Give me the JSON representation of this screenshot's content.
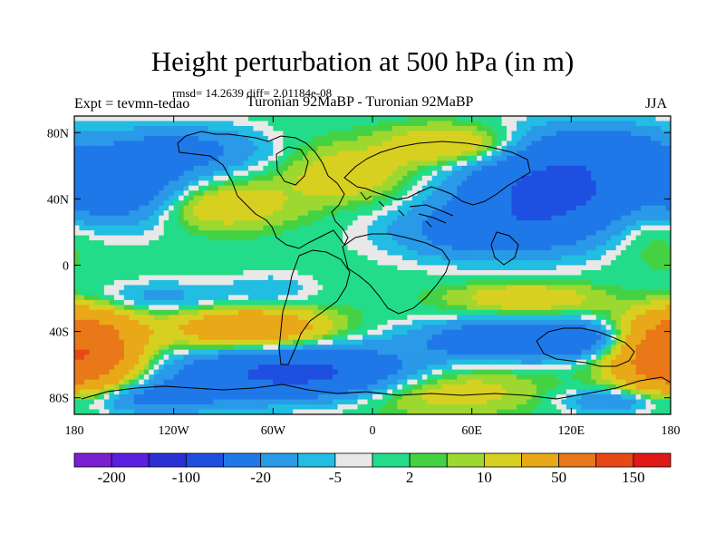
{
  "chart_data": {
    "type": "heatmap",
    "title": "Height perturbation at 500 hPa (in m)",
    "stats_text": "rmsd= 14.2639 diff= 2.01184e-08",
    "left_label": "Expt = tevmn-tedao",
    "center_label": "Turonian  92MaBP - Turonian  92MaBP",
    "season_label": "JJA",
    "x_range": [
      -180,
      180
    ],
    "y_range": [
      -90,
      90
    ],
    "x_ticks": [
      {
        "value": -180,
        "label": "180"
      },
      {
        "value": -120,
        "label": "120W"
      },
      {
        "value": -60,
        "label": "60W"
      },
      {
        "value": 0,
        "label": "0"
      },
      {
        "value": 60,
        "label": "60E"
      },
      {
        "value": 120,
        "label": "120E"
      },
      {
        "value": 180,
        "label": "180"
      }
    ],
    "y_ticks": [
      {
        "value": 80,
        "label": "80N"
      },
      {
        "value": 40,
        "label": "40N"
      },
      {
        "value": 0,
        "label": "0"
      },
      {
        "value": -40,
        "label": "40S"
      },
      {
        "value": -80,
        "label": "80S"
      }
    ],
    "colorbar": {
      "colors": [
        "#7a1fd2",
        "#5a1fe0",
        "#2b2fd6",
        "#1f4fe0",
        "#1f78e8",
        "#2a99e8",
        "#22bde2",
        "#e8e8e8",
        "#22dc8a",
        "#44d244",
        "#9dd830",
        "#d8d020",
        "#e8a818",
        "#e87818",
        "#e84818",
        "#e01818"
      ],
      "labels": [
        {
          "after_box": 1,
          "text": "-200"
        },
        {
          "after_box": 3,
          "text": "-100"
        },
        {
          "after_box": 5,
          "text": "-20"
        },
        {
          "after_box": 7,
          "text": "-5"
        },
        {
          "after_box": 9,
          "text": "2"
        },
        {
          "after_box": 11,
          "text": "10"
        },
        {
          "after_box": 13,
          "text": "50"
        },
        {
          "after_box": 15,
          "text": "150"
        }
      ]
    },
    "field_blobs": [
      {
        "lon": -155,
        "lat": 40,
        "rlon": 40,
        "rlat": 18,
        "amp": -25
      },
      {
        "lon": -145,
        "lat": 55,
        "rlon": 40,
        "rlat": 20,
        "amp": -20
      },
      {
        "lon": -95,
        "lat": 36,
        "rlon": 45,
        "rlat": 14,
        "amp": 20
      },
      {
        "lon": -110,
        "lat": 70,
        "rlon": 50,
        "rlat": 14,
        "amp": -22
      },
      {
        "lon": -50,
        "lat": 75,
        "rlon": 30,
        "rlat": 12,
        "amp": 2
      },
      {
        "lon": -15,
        "lat": 55,
        "rlon": 38,
        "rlat": 16,
        "amp": 18
      },
      {
        "lon": 50,
        "lat": 72,
        "rlon": 40,
        "rlat": 12,
        "amp": 25
      },
      {
        "lon": 60,
        "lat": 20,
        "rlon": 50,
        "rlat": 16,
        "amp": -25
      },
      {
        "lon": 110,
        "lat": 45,
        "rlon": 55,
        "rlat": 28,
        "amp": -60
      },
      {
        "lon": 140,
        "lat": 72,
        "rlon": 40,
        "rlat": 14,
        "amp": -20
      },
      {
        "lon": 165,
        "lat": 25,
        "rlon": 28,
        "rlat": 22,
        "amp": 12
      },
      {
        "lon": -140,
        "lat": -20,
        "rlon": 60,
        "rlat": 10,
        "amp": -15
      },
      {
        "lon": -60,
        "lat": -15,
        "rlon": 25,
        "rlat": 10,
        "amp": -8
      },
      {
        "lon": -170,
        "lat": -50,
        "rlon": 30,
        "rlat": 24,
        "amp": 60
      },
      {
        "lon": -75,
        "lat": -38,
        "rlon": 45,
        "rlat": 12,
        "amp": 45
      },
      {
        "lon": -45,
        "lat": -65,
        "rlon": 70,
        "rlat": 15,
        "amp": -60
      },
      {
        "lon": -140,
        "lat": -80,
        "rlon": 50,
        "rlat": 10,
        "amp": -25
      },
      {
        "lon": 95,
        "lat": -20,
        "rlon": 45,
        "rlat": 9,
        "amp": 20
      },
      {
        "lon": 95,
        "lat": -45,
        "rlon": 60,
        "rlat": 11,
        "amp": -50
      },
      {
        "lon": 40,
        "lat": -75,
        "rlon": 55,
        "rlat": 14,
        "amp": 20
      },
      {
        "lon": 175,
        "lat": -55,
        "rlon": 30,
        "rlat": 22,
        "amp": 55
      },
      {
        "lon": 145,
        "lat": -82,
        "rlon": 30,
        "rlat": 8,
        "amp": -20
      }
    ]
  }
}
